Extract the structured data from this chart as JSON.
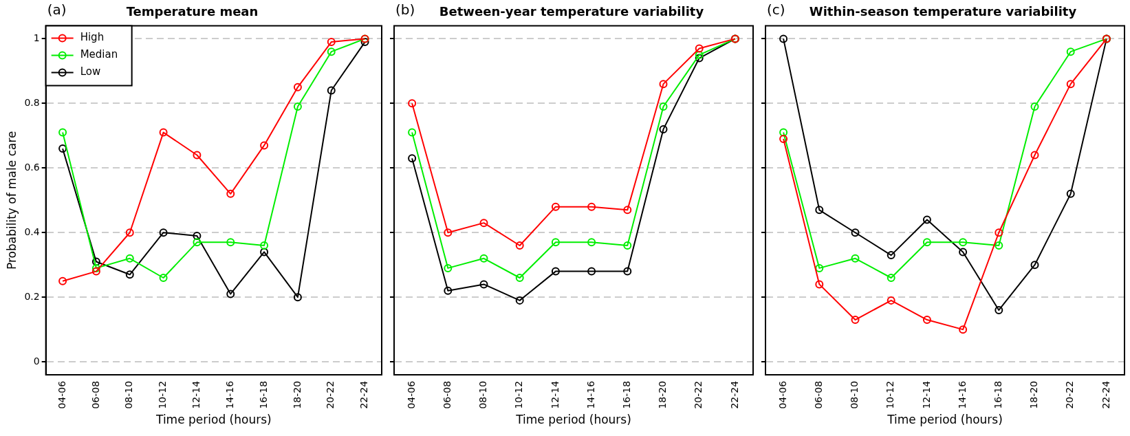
{
  "chart_data": [
    {
      "type": "line",
      "title": "Temperature mean",
      "annotations": [
        "(a)"
      ],
      "xlabel": "Time period (hours)",
      "ylabel": "Probability of male care",
      "categories": [
        "04-06",
        "06-08",
        "08-10",
        "10-12",
        "12-14",
        "14-16",
        "16-18",
        "18-20",
        "20-22",
        "22-24"
      ],
      "ylim": [
        -0.04,
        1.04
      ],
      "yticks": [
        0,
        0.2,
        0.4,
        0.6,
        0.8,
        1
      ],
      "grid": "y",
      "legend": "top left",
      "marker": "circle",
      "line_style": "solid",
      "series": [
        {
          "name": "High",
          "color": "#ff0000",
          "values": [
            0.25,
            0.28,
            0.4,
            0.71,
            0.64,
            0.52,
            0.67,
            0.85,
            0.99,
            1.0
          ]
        },
        {
          "name": "Median",
          "color": "#00ee00",
          "values": [
            0.71,
            0.29,
            0.32,
            0.26,
            0.37,
            0.37,
            0.36,
            0.79,
            0.96,
            1.0
          ]
        },
        {
          "name": "Low",
          "color": "#000000",
          "values": [
            0.66,
            0.31,
            0.27,
            0.4,
            0.39,
            0.21,
            0.34,
            0.2,
            0.84,
            0.99
          ]
        }
      ]
    },
    {
      "type": "line",
      "title": "Between-year temperature variability",
      "annotations": [
        "(b)"
      ],
      "xlabel": "Time period (hours)",
      "categories": [
        "04-06",
        "06-08",
        "08-10",
        "10-12",
        "12-14",
        "14-16",
        "16-18",
        "18-20",
        "20-22",
        "22-24"
      ],
      "ylim": [
        -0.04,
        1.04
      ],
      "yticks": [
        0,
        0.2,
        0.4,
        0.6,
        0.8,
        1
      ],
      "grid": "y",
      "tick_labels": "x",
      "marker": "circle",
      "line_style": "solid",
      "series": [
        {
          "color": "#ff0000",
          "values": [
            0.8,
            0.4,
            0.43,
            0.36,
            0.48,
            0.48,
            0.47,
            0.86,
            0.97,
            1.0
          ]
        },
        {
          "color": "#00ee00",
          "values": [
            0.71,
            0.29,
            0.32,
            0.26,
            0.37,
            0.37,
            0.36,
            0.79,
            0.95,
            1.0
          ]
        },
        {
          "color": "#000000",
          "values": [
            0.63,
            0.22,
            0.24,
            0.19,
            0.28,
            0.28,
            0.28,
            0.72,
            0.94,
            1.0
          ]
        }
      ]
    },
    {
      "type": "line",
      "title": "Within-season temperature variability",
      "annotations": [
        "(c)"
      ],
      "xlabel": "Time period (hours)",
      "categories": [
        "04-06",
        "06-08",
        "08-10",
        "10-12",
        "12-14",
        "14-16",
        "16-18",
        "18-20",
        "20-22",
        "22-24"
      ],
      "ylim": [
        -0.04,
        1.04
      ],
      "yticks": [
        0,
        0.2,
        0.4,
        0.6,
        0.8,
        1
      ],
      "grid": "y",
      "tick_labels": "x",
      "marker": "circle",
      "line_style": "solid",
      "series": [
        {
          "color": "#ff0000",
          "values": [
            0.69,
            0.24,
            0.13,
            0.19,
            0.13,
            0.1,
            0.4,
            0.64,
            0.86,
            1.0
          ]
        },
        {
          "color": "#00ee00",
          "values": [
            0.71,
            0.29,
            0.32,
            0.26,
            0.37,
            0.37,
            0.36,
            0.79,
            0.96,
            1.0
          ]
        },
        {
          "color": "#000000",
          "values": [
            1.0,
            0.47,
            0.4,
            0.33,
            0.44,
            0.34,
            0.16,
            0.3,
            0.52,
            1.0
          ]
        }
      ]
    }
  ]
}
